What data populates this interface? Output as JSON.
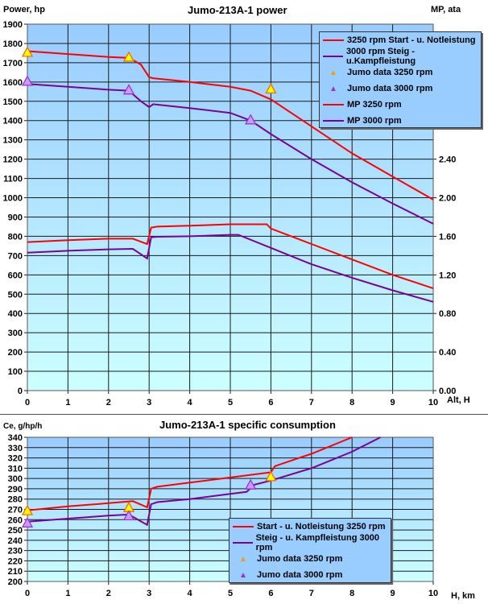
{
  "chart_data": [
    {
      "type": "line",
      "title": "Jumo-213A-1 power",
      "xlabel": "Alt, H",
      "ylabel": "Power, hp",
      "y2label": "MP, ata",
      "xlim": [
        0,
        10
      ],
      "ylim": [
        0,
        1900
      ],
      "y2lim": [
        0,
        3.8
      ],
      "x_ticks": [
        "0",
        "1",
        "2",
        "3",
        "4",
        "5",
        "6",
        "7",
        "8",
        "9",
        "10"
      ],
      "y_ticks": [
        "0",
        "100",
        "200",
        "300",
        "400",
        "500",
        "600",
        "700",
        "800",
        "900",
        "1000",
        "1100",
        "1200",
        "1300",
        "1400",
        "1500",
        "1600",
        "1700",
        "1800",
        "1900"
      ],
      "y2_ticks": [
        "0.00",
        "0.40",
        "0.80",
        "1.20",
        "1.60",
        "2.00",
        "2.40"
      ],
      "grid": true,
      "legend_position": "top-right",
      "series": [
        {
          "name": "3250 rpm Start - u. Notleistung",
          "axis": "left",
          "color": "#ff0000",
          "x": [
            0,
            1,
            2,
            2.5,
            2.8,
            3.0,
            3.1,
            4,
            5,
            5.5,
            6,
            7,
            8,
            9,
            10
          ],
          "y": [
            1760,
            1745,
            1730,
            1725,
            1690,
            1625,
            1620,
            1600,
            1575,
            1555,
            1510,
            1370,
            1230,
            1110,
            990
          ]
        },
        {
          "name": "3000 rpm Steig - u.Kampfleistung",
          "axis": "left",
          "color": "#7b0099",
          "x": [
            0,
            1,
            2,
            2.5,
            2.8,
            3.0,
            3.1,
            4,
            5,
            5.5,
            6,
            7,
            8,
            9,
            10
          ],
          "y": [
            1590,
            1575,
            1560,
            1555,
            1500,
            1470,
            1485,
            1465,
            1440,
            1400,
            1330,
            1200,
            1080,
            970,
            865
          ]
        },
        {
          "name": "Jumo data 3250 rpm",
          "type": "scatter",
          "marker": "triangle",
          "color": "#ffff00",
          "x": [
            0,
            2.5,
            6
          ],
          "y": [
            1750,
            1725,
            1560
          ]
        },
        {
          "name": "Jumo data 3000 rpm",
          "type": "scatter",
          "marker": "triangle",
          "color": "#cc99ff",
          "x": [
            0,
            2.5,
            5.5
          ],
          "y": [
            1600,
            1555,
            1400
          ]
        },
        {
          "name": "MP 3250 rpm",
          "axis": "right",
          "color": "#ff0000",
          "x": [
            0,
            1,
            2,
            2.6,
            2.95,
            3.05,
            3.2,
            4,
            5,
            5.9,
            6,
            7,
            8,
            9,
            10
          ],
          "y": [
            1.54,
            1.56,
            1.575,
            1.575,
            1.52,
            1.69,
            1.7,
            1.71,
            1.725,
            1.725,
            1.68,
            1.52,
            1.36,
            1.2,
            1.06
          ]
        },
        {
          "name": "MP 3000 rpm",
          "axis": "right",
          "color": "#7b0099",
          "x": [
            0,
            1,
            2,
            2.6,
            2.95,
            3.05,
            3.2,
            4,
            5,
            5.2,
            6,
            7,
            8,
            9,
            10
          ],
          "y": [
            1.43,
            1.45,
            1.465,
            1.47,
            1.37,
            1.59,
            1.595,
            1.6,
            1.615,
            1.615,
            1.48,
            1.31,
            1.17,
            1.04,
            0.92
          ]
        }
      ]
    },
    {
      "type": "line",
      "title": "Jumo-213A-1 specific consumption",
      "xlabel": "H, km",
      "ylabel": "Ce, g/hp/h",
      "xlim": [
        0,
        10
      ],
      "ylim": [
        200,
        340
      ],
      "x_ticks": [
        "0",
        "1",
        "2",
        "3",
        "4",
        "5",
        "6",
        "7",
        "8",
        "9",
        "10"
      ],
      "y_ticks": [
        "200",
        "210",
        "220",
        "230",
        "240",
        "250",
        "260",
        "270",
        "280",
        "290",
        "300",
        "310",
        "320",
        "330",
        "340"
      ],
      "grid": true,
      "legend_position": "bottom-right",
      "series": [
        {
          "name": "Start - u. Notleistung 3250 rpm",
          "color": "#ff0000",
          "x": [
            0,
            1,
            2,
            2.6,
            2.95,
            3.05,
            3.2,
            4,
            5,
            6,
            6.1,
            7,
            8
          ],
          "y": [
            269,
            273,
            276,
            278,
            272,
            290,
            292,
            296,
            301,
            306,
            312,
            324,
            340
          ]
        },
        {
          "name": "Steig - u. Kampfleistung 3000 rpm",
          "color": "#7b0099",
          "x": [
            0,
            1,
            2,
            2.5,
            2.95,
            3.05,
            3.2,
            4,
            5,
            5.4,
            5.6,
            6,
            7,
            8,
            8.7
          ],
          "y": [
            258,
            261,
            264,
            265,
            255,
            275,
            277,
            280,
            285,
            287,
            294,
            298,
            310,
            326,
            340
          ]
        },
        {
          "name": "Jumo data 3250 rpm",
          "type": "scatter",
          "marker": "triangle",
          "color": "#ffff00",
          "x": [
            0,
            2.5,
            6
          ],
          "y": [
            268,
            271,
            301
          ]
        },
        {
          "name": "Jumo data 3000 rpm",
          "type": "scatter",
          "marker": "triangle",
          "color": "#cc99ff",
          "x": [
            0,
            2.5,
            5.5
          ],
          "y": [
            256,
            263,
            293
          ]
        }
      ]
    }
  ],
  "top": {
    "title": "Jumo-213A-1 power",
    "ylabel": "Power, hp",
    "y2label": "MP, ata",
    "xlabel": "Alt, H",
    "legend": [
      {
        "label": "3250 rpm Start - u. Notleistung",
        "kind": "line",
        "color": "#ff0000"
      },
      {
        "label": "3000 rpm Steig - u.Kampfleistung",
        "kind": "line",
        "color": "#7b0099"
      },
      {
        "label": "Jumo data 3250 rpm",
        "kind": "tri",
        "color": "#ffff00"
      },
      {
        "label": "Jumo data 3000 rpm",
        "kind": "tri",
        "color": "#cc99ff"
      },
      {
        "label": "MP 3250 rpm",
        "kind": "line",
        "color": "#ff0000"
      },
      {
        "label": "MP 3000 rpm",
        "kind": "line",
        "color": "#7b0099"
      }
    ]
  },
  "bottom": {
    "title": "Jumo-213A-1 specific consumption",
    "ylabel": "Ce, g/hp/h",
    "xlabel": "H, km",
    "legend": [
      {
        "label": "Start - u. Notleistung 3250 rpm",
        "kind": "line",
        "color": "#ff0000"
      },
      {
        "label": "Steig - u. Kampfleistung 3000 rpm",
        "kind": "line",
        "color": "#7b0099"
      },
      {
        "label": "Jumo data 3250 rpm",
        "kind": "tri",
        "color": "#ffff00"
      },
      {
        "label": "Jumo data 3000 rpm",
        "kind": "tri",
        "color": "#cc99ff"
      }
    ]
  }
}
